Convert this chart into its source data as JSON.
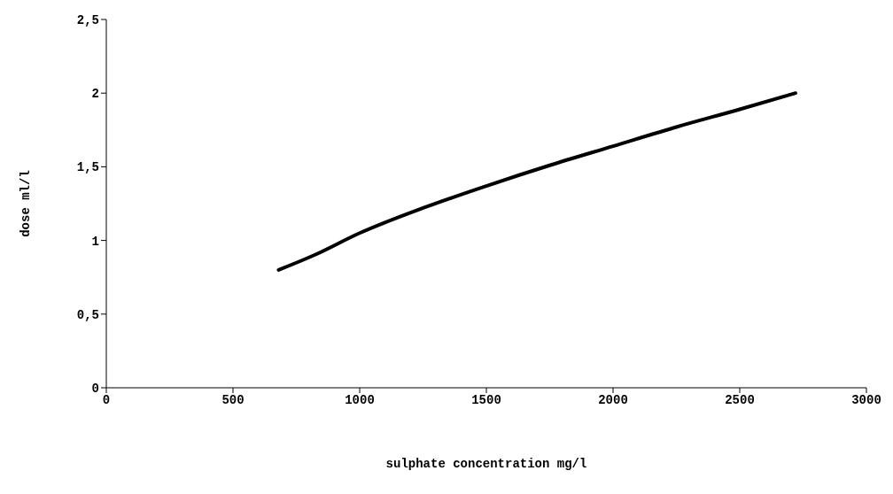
{
  "chart_data": {
    "type": "line",
    "xlabel": "sulphate concentration mg/l",
    "ylabel": "dose ml/l",
    "x": [
      680,
      820,
      1000,
      1250,
      1500,
      1750,
      2000,
      2250,
      2500,
      2720
    ],
    "series": [
      {
        "color": "#000000",
        "values": [
          0.8,
          0.9,
          1.05,
          1.22,
          1.37,
          1.51,
          1.64,
          1.77,
          1.89,
          2.0
        ]
      }
    ],
    "xlim": [
      0,
      3000
    ],
    "xticks": [
      0,
      500,
      1000,
      1500,
      2000,
      2500,
      3000
    ],
    "ylim": [
      0,
      2.5
    ],
    "yticks": [
      0,
      {
        "value": 0.5,
        "label": "0,5"
      },
      1,
      {
        "value": 1.5,
        "label": "1,5"
      },
      2,
      {
        "value": 2.5,
        "label": "2,5"
      }
    ],
    "grid": false,
    "legend": false,
    "marker": "none",
    "line_style": "solid"
  }
}
